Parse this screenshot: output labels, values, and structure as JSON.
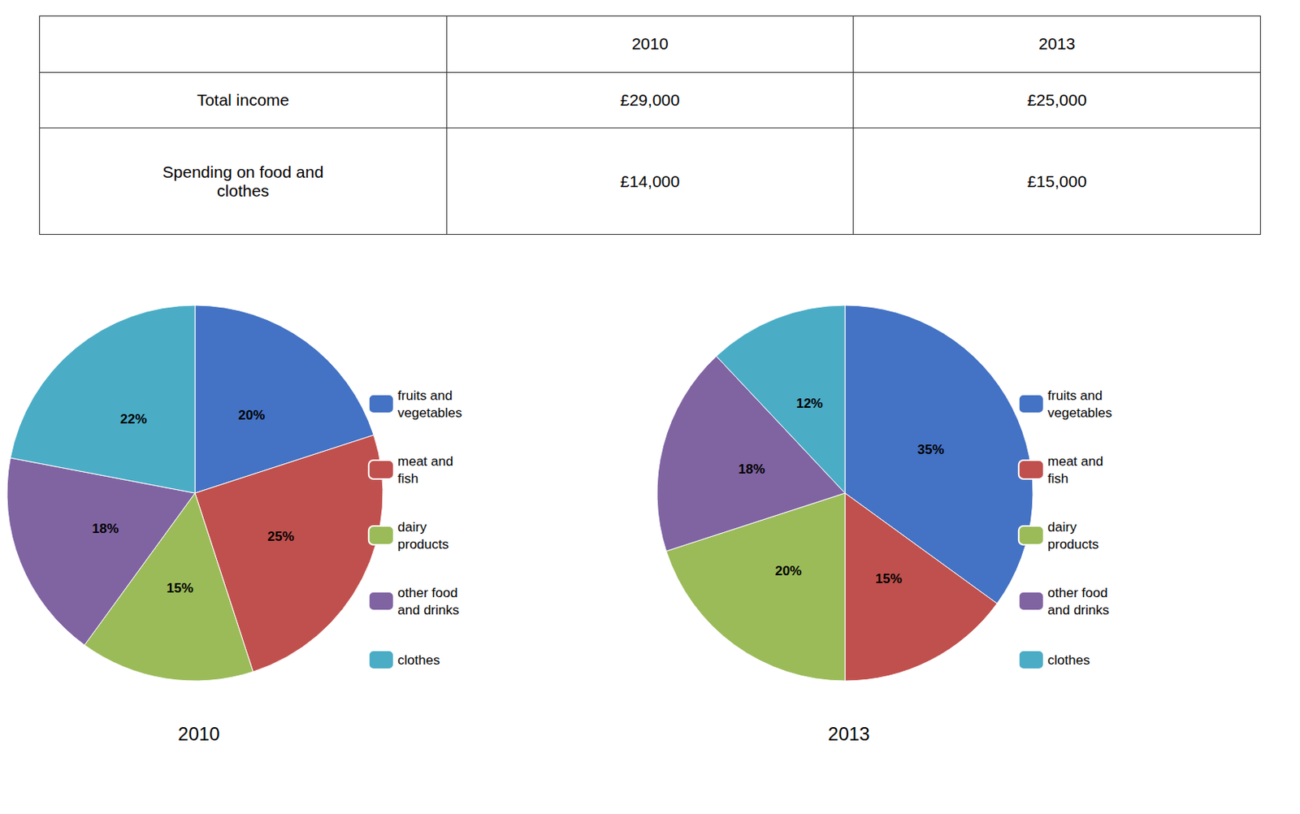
{
  "table": {
    "headers": [
      null,
      "2010",
      "2013"
    ],
    "rows": [
      [
        "Total income",
        "£29,000",
        "£25,000"
      ],
      [
        "Spending on food and\nclothes",
        "£14,000",
        "£15,000"
      ]
    ]
  },
  "chart_data": [
    {
      "type": "pie",
      "title": "2010",
      "categories": [
        "fruits and\nvegetables",
        "meat and\nfish",
        "dairy\nproducts",
        "other food\nand drinks",
        "clothes"
      ],
      "values": [
        20,
        25,
        15,
        18,
        22
      ],
      "value_labels": [
        "20%",
        "25%",
        "15%",
        "18%",
        "22%"
      ],
      "colors": [
        "#4472c4",
        "#c0504d",
        "#9bbb59",
        "#8064a2",
        "#4bacc6"
      ],
      "data_labels": true,
      "legend": "right"
    },
    {
      "type": "pie",
      "title": "2013",
      "categories": [
        "fruits and\nvegetables",
        "meat and\nfish",
        "dairy\nproducts",
        "other food\nand drinks",
        "clothes"
      ],
      "values": [
        35,
        15,
        20,
        18,
        12
      ],
      "value_labels": [
        "35%",
        "15%",
        "20%",
        "18%",
        "12%"
      ],
      "colors": [
        "#4472c4",
        "#c0504d",
        "#9bbb59",
        "#8064a2",
        "#4bacc6"
      ],
      "data_labels": true,
      "legend": "right"
    }
  ]
}
